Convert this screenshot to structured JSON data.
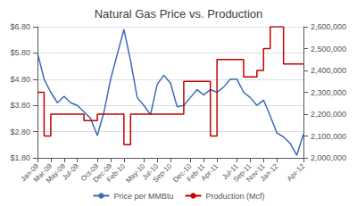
{
  "chart_data": {
    "type": "line",
    "title": "Natural Gas Price vs. Production",
    "categories": [
      "Jan-09",
      null,
      "Mar-09",
      null,
      "May-09",
      null,
      "Jul-09",
      null,
      null,
      "Oct-09",
      null,
      "Dec-09",
      null,
      "Feb-10",
      null,
      null,
      "May-10",
      null,
      "Jul-10",
      null,
      "Sep-10",
      null,
      null,
      "Dec-10",
      null,
      "Feb-11",
      null,
      "Apr-11",
      null,
      null,
      "Jul-11",
      null,
      "Sep-11",
      null,
      "Nov-11",
      null,
      "Jan-12",
      null,
      null,
      null,
      "Apr-12"
    ],
    "series": [
      {
        "name": "Price per MMBtu",
        "type": "line",
        "color": "#3B6BB5",
        "values": [
          5.8,
          4.8,
          4.3,
          3.9,
          4.15,
          3.9,
          3.8,
          3.55,
          3.3,
          2.65,
          3.55,
          4.8,
          5.75,
          6.7,
          5.5,
          4.1,
          3.8,
          3.45,
          4.6,
          4.95,
          4.65,
          3.75,
          3.8,
          4.1,
          4.4,
          4.2,
          4.4,
          4.3,
          4.5,
          4.8,
          4.8,
          4.3,
          4.1,
          3.8,
          4.0,
          3.4,
          2.75,
          2.6,
          2.35,
          1.9,
          2.7
        ]
      },
      {
        "name": "Production (Mcf)",
        "type": "step",
        "axis": "y2",
        "color": "#C00000",
        "values": [
          2300000,
          2100000,
          2200000,
          2200000,
          2200000,
          2200000,
          2200000,
          2170000,
          2170000,
          2200000,
          2200000,
          2200000,
          2200000,
          2060000,
          2200000,
          2200000,
          2200000,
          2200000,
          2200000,
          2200000,
          2200000,
          2200000,
          2350000,
          2350000,
          2350000,
          2350000,
          2100000,
          2450000,
          2450000,
          2450000,
          2450000,
          2370000,
          2370000,
          2400000,
          2500000,
          2600000,
          2600000,
          2430000,
          2430000,
          2430000,
          2430000
        ]
      }
    ],
    "ylim": [
      1.8,
      6.8
    ],
    "yticks": [
      {
        "value": 1.8,
        "label": "$1.80"
      },
      {
        "value": 2.8,
        "label": "$2.80"
      },
      {
        "value": 3.8,
        "label": "$3.80"
      },
      {
        "value": 4.8,
        "label": "$4.80"
      },
      {
        "value": 5.8,
        "label": "$5.80"
      },
      {
        "value": 6.8,
        "label": "$6.80"
      }
    ],
    "y2lim": [
      2000000,
      2600000
    ],
    "y2ticks": [
      {
        "value": 2000000,
        "label": "2,000,000"
      },
      {
        "value": 2100000,
        "label": "2,100,000"
      },
      {
        "value": 2200000,
        "label": "2,200,000"
      },
      {
        "value": 2300000,
        "label": "2,300,000"
      },
      {
        "value": 2400000,
        "label": "2,400,000"
      },
      {
        "value": 2500000,
        "label": "2,500,000"
      },
      {
        "value": 2600000,
        "label": "2,600,000"
      }
    ],
    "grid": true,
    "legend": "bottom"
  }
}
